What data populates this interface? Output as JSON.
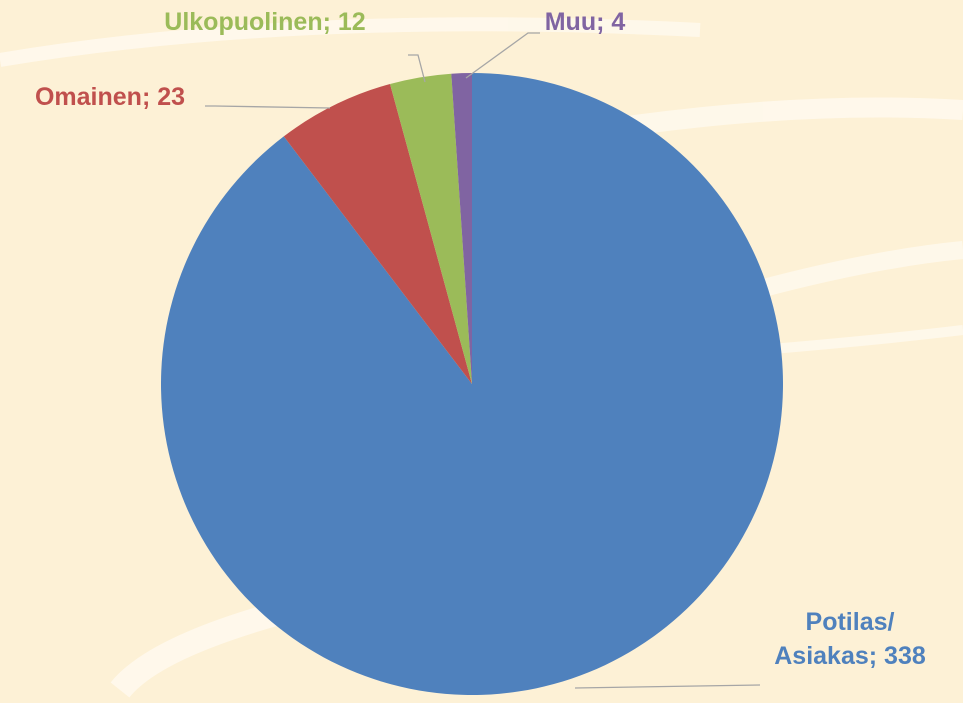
{
  "chart_data": {
    "type": "pie",
    "categories": [
      "Potilas/ Asiakas",
      "Omainen",
      "Ulkopuolinen",
      "Muu"
    ],
    "values": [
      338,
      23,
      12,
      4
    ],
    "colors": [
      "#4f81bd",
      "#c0504d",
      "#9bbb59",
      "#8064a2"
    ],
    "label_separator": "; "
  }
}
